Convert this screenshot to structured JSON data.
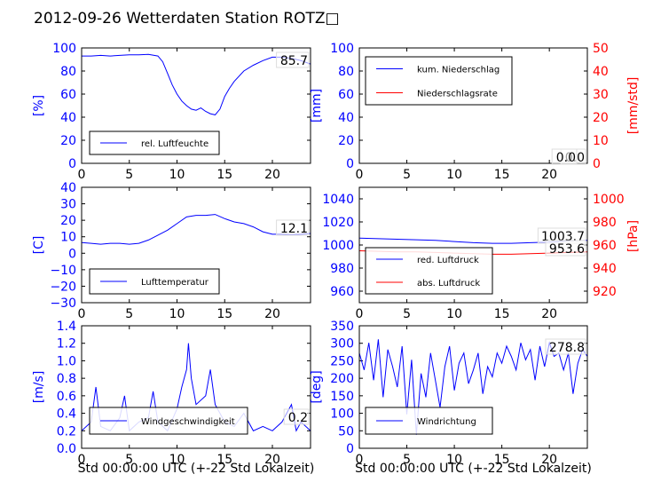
{
  "page_title": "2012-09-26 Wetterdaten Station ROTZ□",
  "colors": {
    "primary": "#0000ff",
    "secondary": "#ff0000",
    "axis": "#000000",
    "legend_border": "#000000",
    "current_box": "#dddddd"
  },
  "chart_data": [
    {
      "id": "humidity",
      "type": "line",
      "ylabel": "[%]",
      "ylim": [
        0,
        100
      ],
      "yticks": [
        "0",
        "20",
        "40",
        "60",
        "80",
        "100"
      ],
      "xlim": [
        0,
        24
      ],
      "xticks": [
        "0",
        "5",
        "10",
        "15",
        "20"
      ],
      "xlabel": "",
      "legend": {
        "placement": "lower-left",
        "entries": [
          "rel. Luftfeuchte"
        ]
      },
      "current_value": "85.7",
      "series": [
        {
          "name": "rel. Luftfeuchte",
          "color": "#0000ff",
          "x": [
            0,
            1,
            2,
            3,
            4,
            5,
            6,
            7,
            8,
            8.5,
            9,
            9.5,
            10,
            10.5,
            11,
            11.5,
            12,
            12.5,
            13,
            13.5,
            14,
            14.5,
            15,
            15.5,
            16,
            17,
            18,
            19,
            20,
            21,
            22,
            23,
            24
          ],
          "y": [
            93,
            93,
            93.5,
            93,
            93.5,
            94,
            94,
            94.5,
            93,
            88,
            78,
            68,
            60,
            54,
            50,
            47,
            46,
            48,
            45,
            43,
            42,
            47,
            58,
            65,
            71,
            80,
            85,
            89,
            92,
            92,
            91,
            89,
            86
          ]
        }
      ]
    },
    {
      "id": "precipitation",
      "type": "line",
      "ylabel": "[mm]",
      "ylim": [
        0,
        100
      ],
      "yticks": [
        "0",
        "20",
        "40",
        "60",
        "80",
        "100"
      ],
      "y2label": "[mm/std]",
      "y2lim": [
        0,
        50
      ],
      "y2ticks": [
        "0",
        "10",
        "20",
        "30",
        "40",
        "50"
      ],
      "xlim": [
        0,
        24
      ],
      "xticks": [
        "0",
        "5",
        "10",
        "15",
        "20"
      ],
      "xlabel": "",
      "legend": {
        "placement": "upper-left",
        "entries": [
          "kum. Niederschlag",
          "Niederschlagsrate"
        ]
      },
      "current_values": [
        "0.0",
        "0.0"
      ],
      "series": [
        {
          "name": "kum. Niederschlag",
          "color": "#0000ff",
          "axis": "left",
          "x": [
            0,
            24
          ],
          "y": [
            0,
            0
          ]
        },
        {
          "name": "Niederschlagsrate",
          "color": "#ff0000",
          "axis": "right",
          "x": [
            0,
            24
          ],
          "y": [
            0,
            0
          ]
        }
      ]
    },
    {
      "id": "temperature",
      "type": "line",
      "ylabel": "[C]",
      "ylim": [
        -30,
        40
      ],
      "yticks": [
        "−30",
        "−20",
        "−10",
        "0",
        "10",
        "20",
        "30",
        "40"
      ],
      "xlim": [
        0,
        24
      ],
      "xticks": [
        "0",
        "5",
        "10",
        "15",
        "20"
      ],
      "xlabel": "",
      "legend": {
        "placement": "lower-left",
        "entries": [
          "Lufttemperatur"
        ]
      },
      "current_value": "12.1",
      "series": [
        {
          "name": "Lufttemperatur",
          "color": "#0000ff",
          "x": [
            0,
            1,
            2,
            3,
            4,
            5,
            6,
            7,
            8,
            9,
            10,
            11,
            12,
            13,
            14,
            15,
            16,
            17,
            18,
            19,
            20,
            21,
            22,
            23,
            24
          ],
          "y": [
            6.5,
            6,
            5.5,
            6,
            6,
            5.5,
            6,
            8,
            11,
            14,
            18,
            22,
            23,
            23,
            23.5,
            21,
            19,
            18,
            16,
            13,
            11.5,
            11.5,
            11.3,
            11.5,
            12
          ]
        }
      ]
    },
    {
      "id": "pressure",
      "type": "line",
      "ylabel": "",
      "ylim": [
        950,
        1050
      ],
      "yticks": [
        "960",
        "980",
        "1000",
        "1020",
        "1040"
      ],
      "y2label": "[hPa]",
      "y2lim": [
        910,
        1010
      ],
      "y2ticks": [
        "920",
        "940",
        "960",
        "980",
        "1000"
      ],
      "xlim": [
        0,
        24
      ],
      "xticks": [
        "0",
        "5",
        "10",
        "15",
        "20"
      ],
      "xlabel": "",
      "legend": {
        "placement": "lower-left",
        "entries": [
          "red. Luftdruck",
          "abs. Luftdruck"
        ]
      },
      "current_values": [
        "1003.7",
        "953.6"
      ],
      "series": [
        {
          "name": "red. Luftdruck",
          "color": "#0000ff",
          "axis": "left",
          "x": [
            0,
            2,
            4,
            6,
            8,
            10,
            12,
            14,
            16,
            18,
            20,
            22,
            24
          ],
          "y": [
            1006,
            1005.5,
            1005,
            1004.5,
            1004,
            1003,
            1002,
            1001.5,
            1001.5,
            1002,
            1002.5,
            1003.5,
            1004
          ]
        },
        {
          "name": "abs. Luftdruck",
          "color": "#ff0000",
          "axis": "right",
          "x": [
            0,
            2,
            4,
            6,
            8,
            10,
            12,
            14,
            16,
            18,
            20,
            22,
            24
          ],
          "y": [
            955,
            954.5,
            954,
            954,
            953.5,
            953,
            952.5,
            952,
            952,
            952.5,
            953,
            953.5,
            954
          ]
        }
      ]
    },
    {
      "id": "windspeed",
      "type": "line",
      "ylabel": "[m/s]",
      "ylim": [
        0,
        1.4
      ],
      "yticks": [
        "0.0",
        "0.2",
        "0.4",
        "0.6",
        "0.8",
        "1.0",
        "1.2",
        "1.4"
      ],
      "xlim": [
        0,
        24
      ],
      "xticks": [
        "0",
        "5",
        "10",
        "15",
        "20"
      ],
      "xlabel": "Std 00:00:00 UTC (+-22 Std Lokalzeit)",
      "legend": {
        "placement": "lower-left",
        "entries": [
          "Windgeschwindigkeit"
        ]
      },
      "current_value": "0.2",
      "series": [
        {
          "name": "Windgeschwindigkeit",
          "color": "#0000ff",
          "x": [
            0,
            1,
            1.5,
            2,
            3,
            4,
            4.5,
            5,
            6,
            7,
            7.5,
            8,
            9,
            10,
            10.5,
            11,
            11.2,
            11.5,
            12,
            13,
            13.5,
            14,
            15,
            16,
            17,
            18,
            19,
            20,
            21,
            22,
            22.5,
            23,
            24
          ],
          "y": [
            0.2,
            0.3,
            0.7,
            0.25,
            0.2,
            0.35,
            0.6,
            0.2,
            0.3,
            0.35,
            0.65,
            0.3,
            0.2,
            0.45,
            0.7,
            0.9,
            1.2,
            0.8,
            0.5,
            0.6,
            0.9,
            0.5,
            0.3,
            0.25,
            0.4,
            0.2,
            0.25,
            0.2,
            0.3,
            0.5,
            0.2,
            0.3,
            0.2
          ]
        }
      ]
    },
    {
      "id": "winddirection",
      "type": "line",
      "ylabel": "[deg]",
      "ylim": [
        0,
        360
      ],
      "yticks": [
        "0",
        "50",
        "100",
        "150",
        "200",
        "250",
        "300",
        "350"
      ],
      "xlim": [
        0,
        24
      ],
      "xticks": [
        "0",
        "5",
        "10",
        "15",
        "20"
      ],
      "xlabel": "Std 00:00:00 UTC (+-22 Std Lokalzeit)",
      "legend": {
        "placement": "lower-left",
        "entries": [
          "Windrichtung"
        ]
      },
      "current_value": "278.8",
      "series": [
        {
          "name": "Windrichtung",
          "color": "#0000ff",
          "x": [
            0,
            0.5,
            1,
            1.5,
            2,
            2.5,
            3,
            3.5,
            4,
            4.5,
            5,
            5.5,
            6,
            6.5,
            7,
            7.5,
            8,
            8.5,
            9,
            9.5,
            10,
            10.5,
            11,
            11.5,
            12,
            12.5,
            13,
            13.5,
            14,
            14.5,
            15,
            15.5,
            16,
            16.5,
            17,
            17.5,
            18,
            18.5,
            19,
            19.5,
            20,
            20.5,
            21,
            21.5,
            22,
            22.5,
            23,
            23.5,
            24
          ],
          "y": [
            280,
            230,
            310,
            200,
            320,
            150,
            290,
            240,
            180,
            300,
            100,
            260,
            40,
            220,
            150,
            280,
            200,
            120,
            240,
            300,
            170,
            250,
            280,
            190,
            230,
            280,
            160,
            240,
            210,
            280,
            250,
            300,
            270,
            230,
            310,
            260,
            290,
            200,
            300,
            240,
            310,
            270,
            280,
            230,
            280,
            160,
            250,
            290,
            270
          ]
        }
      ]
    }
  ]
}
